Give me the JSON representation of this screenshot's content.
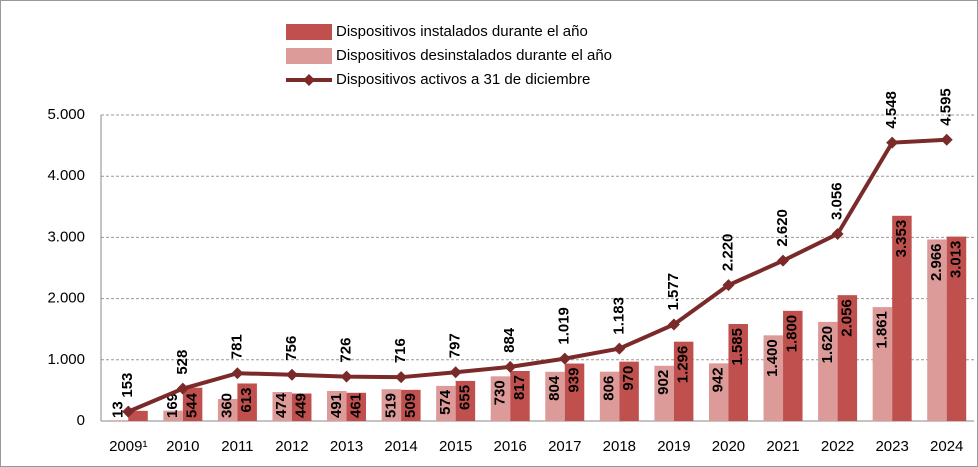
{
  "chart_data": {
    "type": "bar-line",
    "categories": [
      "2009¹",
      "2010",
      "2011",
      "2012",
      "2013",
      "2014",
      "2015",
      "2016",
      "2017",
      "2018",
      "2019",
      "2020",
      "2021",
      "2022",
      "2023",
      "2024"
    ],
    "series": [
      {
        "name": "Dispositivos instalados durante el año",
        "color": "#c0504d",
        "kind": "bar",
        "values": [
          166,
          544,
          613,
          449,
          461,
          509,
          655,
          817,
          939,
          970,
          1296,
          1585,
          1800,
          2056,
          3353,
          3013
        ],
        "value_labels": [
          null,
          "544",
          "613",
          "449",
          "461",
          "509",
          "655",
          "817",
          "939",
          "970",
          "1.296",
          "1.585",
          "1.800",
          "2.056",
          "3.353",
          "3.013"
        ]
      },
      {
        "name": "Dispositivos desinstalados durante el año",
        "color": "#dc9a99",
        "kind": "bar",
        "values": [
          13,
          169,
          360,
          474,
          491,
          519,
          574,
          730,
          804,
          806,
          902,
          942,
          1400,
          1620,
          1861,
          2966
        ],
        "value_labels": [
          "13",
          "169",
          "360",
          "474",
          "491",
          "519",
          "574",
          "730",
          "804",
          "806",
          "902",
          "942",
          "1.400",
          "1.620",
          "1.861",
          "2.966"
        ]
      },
      {
        "name": "Dispositivos activos a 31 de diciembre",
        "color": "#7b2a2a",
        "kind": "line",
        "values": [
          153,
          528,
          781,
          756,
          726,
          716,
          797,
          884,
          1019,
          1183,
          1577,
          2220,
          2620,
          3056,
          4548,
          4595
        ],
        "value_labels": [
          "153",
          "528",
          "781",
          "756",
          "726",
          "716",
          "797",
          "884",
          "1.019",
          "1.183",
          "1.577",
          "2.220",
          "2.620",
          "3.056",
          "4.548",
          "4.595"
        ]
      }
    ],
    "ylim": [
      0,
      5000
    ],
    "yticks": [
      0,
      {
        "value": 1000,
        "label": "1.000"
      },
      {
        "value": 2000,
        "label": "2.000"
      },
      {
        "value": 3000,
        "label": "3.000"
      },
      {
        "value": 4000,
        "label": "4.000"
      },
      {
        "value": 5000,
        "label": "5.000"
      }
    ],
    "grid": true
  }
}
